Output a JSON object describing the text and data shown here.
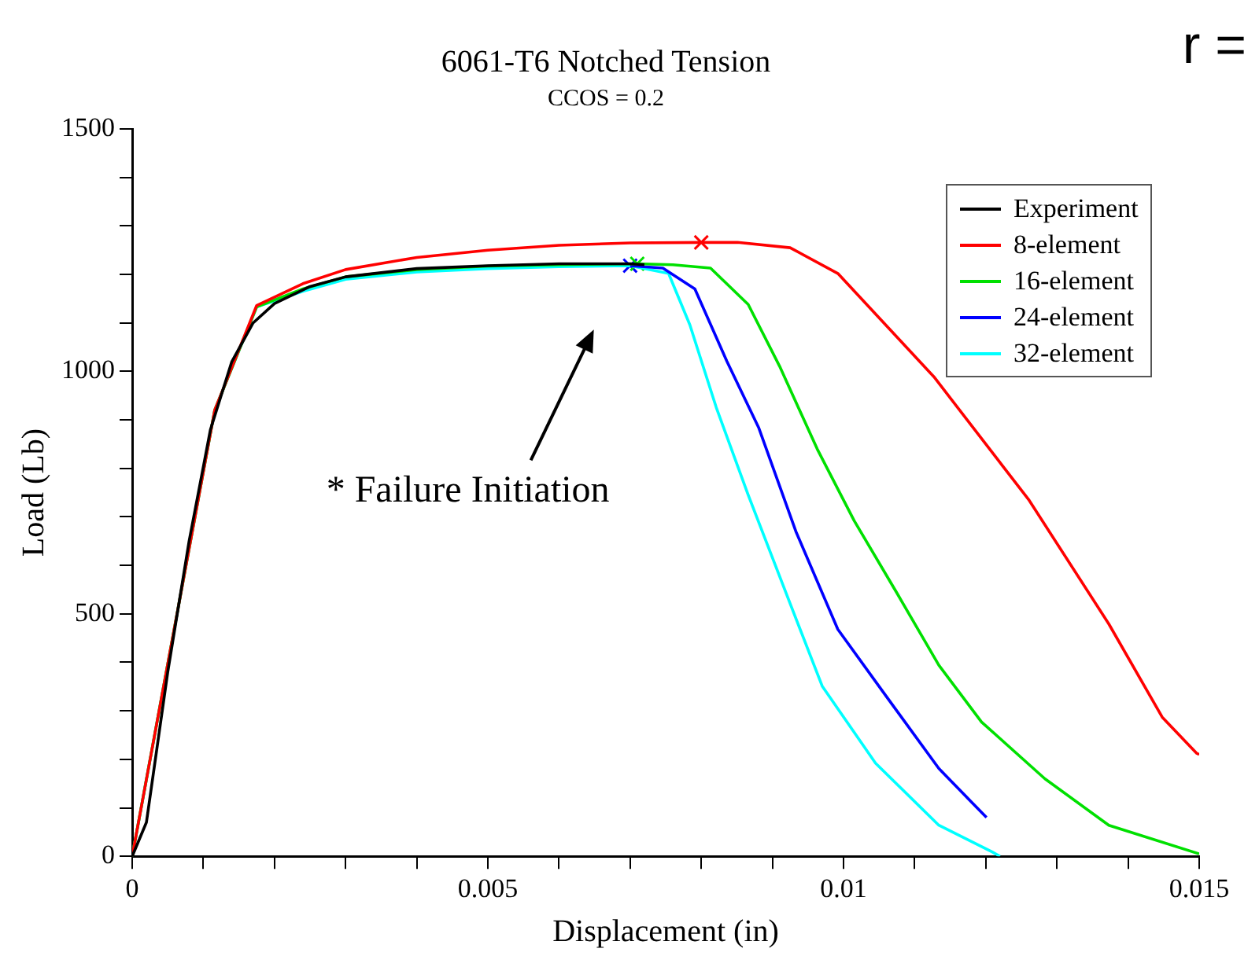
{
  "chart_data": {
    "type": "line",
    "title": "6061-T6 Notched Tension",
    "subtitle": "CCOS = 0.2",
    "xlabel": "Displacement (in)",
    "ylabel": "Load (Lb)",
    "xlim": [
      0,
      0.015
    ],
    "ylim": [
      0,
      1500
    ],
    "xticks": [
      0,
      {
        "value": 0.001,
        "label": null
      },
      {
        "value": 0.002,
        "label": null
      },
      {
        "value": 0.003,
        "label": null
      },
      {
        "value": 0.004,
        "label": null
      },
      0.005,
      {
        "value": 0.006,
        "label": null
      },
      {
        "value": 0.007,
        "label": null
      },
      {
        "value": 0.008,
        "label": null
      },
      {
        "value": 0.009,
        "label": null
      },
      0.01,
      {
        "value": 0.011,
        "label": null
      },
      {
        "value": 0.012,
        "label": null
      },
      {
        "value": 0.013,
        "label": null
      },
      {
        "value": 0.014,
        "label": null
      },
      0.015
    ],
    "yticks": [
      0,
      {
        "value": 100,
        "label": null
      },
      {
        "value": 200,
        "label": null
      },
      {
        "value": 300,
        "label": null
      },
      {
        "value": 400,
        "label": null
      },
      500,
      {
        "value": 600,
        "label": null
      },
      {
        "value": 700,
        "label": null
      },
      {
        "value": 800,
        "label": null
      },
      {
        "value": 900,
        "label": null
      },
      1000,
      {
        "value": 1100,
        "label": null
      },
      {
        "value": 1200,
        "label": null
      },
      {
        "value": 1300,
        "label": null
      },
      {
        "value": 1400,
        "label": null
      },
      1500
    ],
    "grid": false,
    "legend": "top right",
    "marker": "none",
    "line_style": "solid",
    "series": [
      {
        "name": "Experiment",
        "color": "#000000",
        "x": [
          0,
          0.0002,
          0.0005,
          0.0008,
          0.0011,
          0.0014,
          0.0017,
          0.002,
          0.0025,
          0.003,
          0.004,
          0.005,
          0.006,
          0.007,
          0.0072
        ],
        "values": [
          0,
          70,
          380,
          650,
          880,
          1020,
          1100,
          1140,
          1175,
          1195,
          1212,
          1218,
          1222,
          1222,
          1220
        ]
      },
      {
        "name": "8-element",
        "color": "#ff0000",
        "x": [
          0,
          0.00116,
          0.00175,
          0.0024,
          0.003,
          0.004,
          0.005,
          0.006,
          0.007,
          0.008,
          0.00851,
          0.00925,
          0.00992,
          0.01127,
          0.01261,
          0.01373,
          0.01448,
          0.01496,
          0.015
        ],
        "values": [
          0,
          920,
          1136,
          1181,
          1210,
          1235,
          1250,
          1260,
          1265,
          1266,
          1266,
          1255,
          1202,
          989,
          734,
          479,
          287,
          213,
          210
        ]
      },
      {
        "name": "16-element",
        "color": "#00e000",
        "x": [
          0,
          0.00116,
          0.00175,
          0.0024,
          0.003,
          0.004,
          0.005,
          0.006,
          0.0071,
          0.0076,
          0.00813,
          0.00866,
          0.0091,
          0.00963,
          0.01015,
          0.01075,
          0.01134,
          0.01194,
          0.01283,
          0.01373,
          0.015
        ],
        "values": [
          0,
          920,
          1133,
          1170,
          1195,
          1210,
          1217,
          1220,
          1222,
          1220,
          1213,
          1138,
          1011,
          840,
          692,
          543,
          394,
          277,
          160,
          64,
          5
        ]
      },
      {
        "name": "24-element",
        "color": "#0000ff",
        "x": [
          0.007,
          0.00746,
          0.00791,
          0.00836,
          0.00881,
          0.00933,
          0.00992,
          0.0106,
          0.01134,
          0.01201
        ],
        "values": [
          1218,
          1213,
          1170,
          1021,
          883,
          670,
          468,
          330,
          181,
          80
        ]
      },
      {
        "name": "32-element",
        "color": "#00ffff",
        "x": [
          0,
          0.00116,
          0.00175,
          0.0024,
          0.003,
          0.004,
          0.005,
          0.006,
          0.007,
          0.00754,
          0.00784,
          0.00821,
          0.00866,
          0.00925,
          0.0097,
          0.01045,
          0.01134,
          0.01209,
          0.0122
        ],
        "values": [
          0,
          920,
          1133,
          1165,
          1190,
          1205,
          1212,
          1216,
          1218,
          1202,
          1096,
          926,
          745,
          521,
          351,
          192,
          64,
          9,
          0
        ]
      },
      {
        "type": "scatter",
        "marker": "cross",
        "color": "#ff0000",
        "x": [
          0.008
        ],
        "values": [
          1266
        ]
      },
      {
        "type": "scatter",
        "marker": "cross",
        "color": "#00e000",
        "x": [
          0.0071
        ],
        "values": [
          1222
        ]
      },
      {
        "type": "scatter",
        "marker": "cross",
        "color": "#0000ff",
        "x": [
          0.007
        ],
        "values": [
          1218
        ]
      }
    ],
    "annotations": [
      "r =",
      "* Failure Initiation"
    ]
  }
}
